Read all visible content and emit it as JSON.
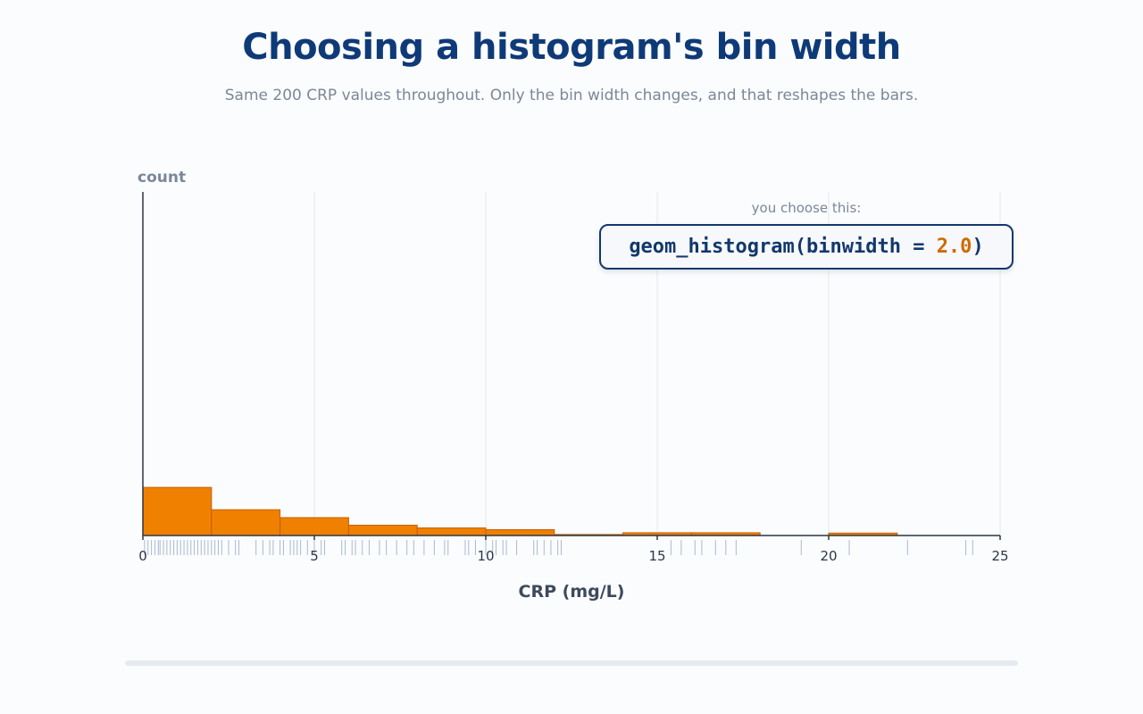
{
  "page": {
    "title": "Choosing a histogram's bin width",
    "subtitle": "Same 200 CRP values throughout. Only the bin width changes, and that reshapes the bars."
  },
  "code_panel": {
    "hint": "you choose this:",
    "code_prefix": "geom_histogram(binwidth = ",
    "code_value": "2.0",
    "code_suffix": ")"
  },
  "slider": {
    "value": 2.0
  },
  "colors": {
    "title": "#0f3a78",
    "bar_fill": "#f08000",
    "bar_stroke": "#c45f00",
    "axis": "#2b3648",
    "grid": "#e6e9ee",
    "rug": "#a9bad0",
    "code_text": "#12386b",
    "code_value": "#d06a00",
    "muted": "#7a8799"
  },
  "chart_data": {
    "type": "bar",
    "ylabel": "count",
    "xlabel": "CRP (mg/L)",
    "xlim": [
      0,
      25
    ],
    "ylim": [
      0,
      100
    ],
    "binwidth": 2.0,
    "bins": [
      {
        "x0": 0,
        "x1": 2,
        "count": 14
      },
      {
        "x0": 2,
        "x1": 4,
        "count": 7.5
      },
      {
        "x0": 4,
        "x1": 6,
        "count": 5.2
      },
      {
        "x0": 6,
        "x1": 8,
        "count": 3
      },
      {
        "x0": 8,
        "x1": 10,
        "count": 2.2
      },
      {
        "x0": 10,
        "x1": 12,
        "count": 1.7
      },
      {
        "x0": 12,
        "x1": 14,
        "count": 0.3
      },
      {
        "x0": 14,
        "x1": 16,
        "count": 0.8
      },
      {
        "x0": 16,
        "x1": 18,
        "count": 0.8
      },
      {
        "x0": 18,
        "x1": 20,
        "count": 0
      },
      {
        "x0": 20,
        "x1": 22,
        "count": 0.7
      }
    ],
    "x_ticks": [
      0,
      5,
      10,
      15,
      20,
      25
    ],
    "x_tick_labels": [
      "0",
      "5",
      "10",
      "15",
      "20",
      "25"
    ],
    "grid_x": true,
    "grid_y": false,
    "rug": [
      0.05,
      0.15,
      0.25,
      0.35,
      0.45,
      0.5,
      0.6,
      0.7,
      0.8,
      0.9,
      1.0,
      1.1,
      1.2,
      1.3,
      1.4,
      1.5,
      1.6,
      1.7,
      1.8,
      1.9,
      2.0,
      2.1,
      2.2,
      2.3,
      2.5,
      2.7,
      2.8,
      3.3,
      3.5,
      3.7,
      3.8,
      4.0,
      4.1,
      4.3,
      4.4,
      4.5,
      4.6,
      4.8,
      5.0,
      5.2,
      5.3,
      5.8,
      5.9,
      6.1,
      6.2,
      6.4,
      6.6,
      6.9,
      7.1,
      7.4,
      7.7,
      7.9,
      8.2,
      8.5,
      8.8,
      8.9,
      9.4,
      9.5,
      9.7,
      10.0,
      10.2,
      10.3,
      10.5,
      10.6,
      10.9,
      11.4,
      11.5,
      11.7,
      11.9,
      12.1,
      12.2,
      15.4,
      15.7,
      16.1,
      16.3,
      16.7,
      17.0,
      17.3,
      19.2,
      20.6,
      22.3,
      24.0,
      24.2
    ]
  }
}
